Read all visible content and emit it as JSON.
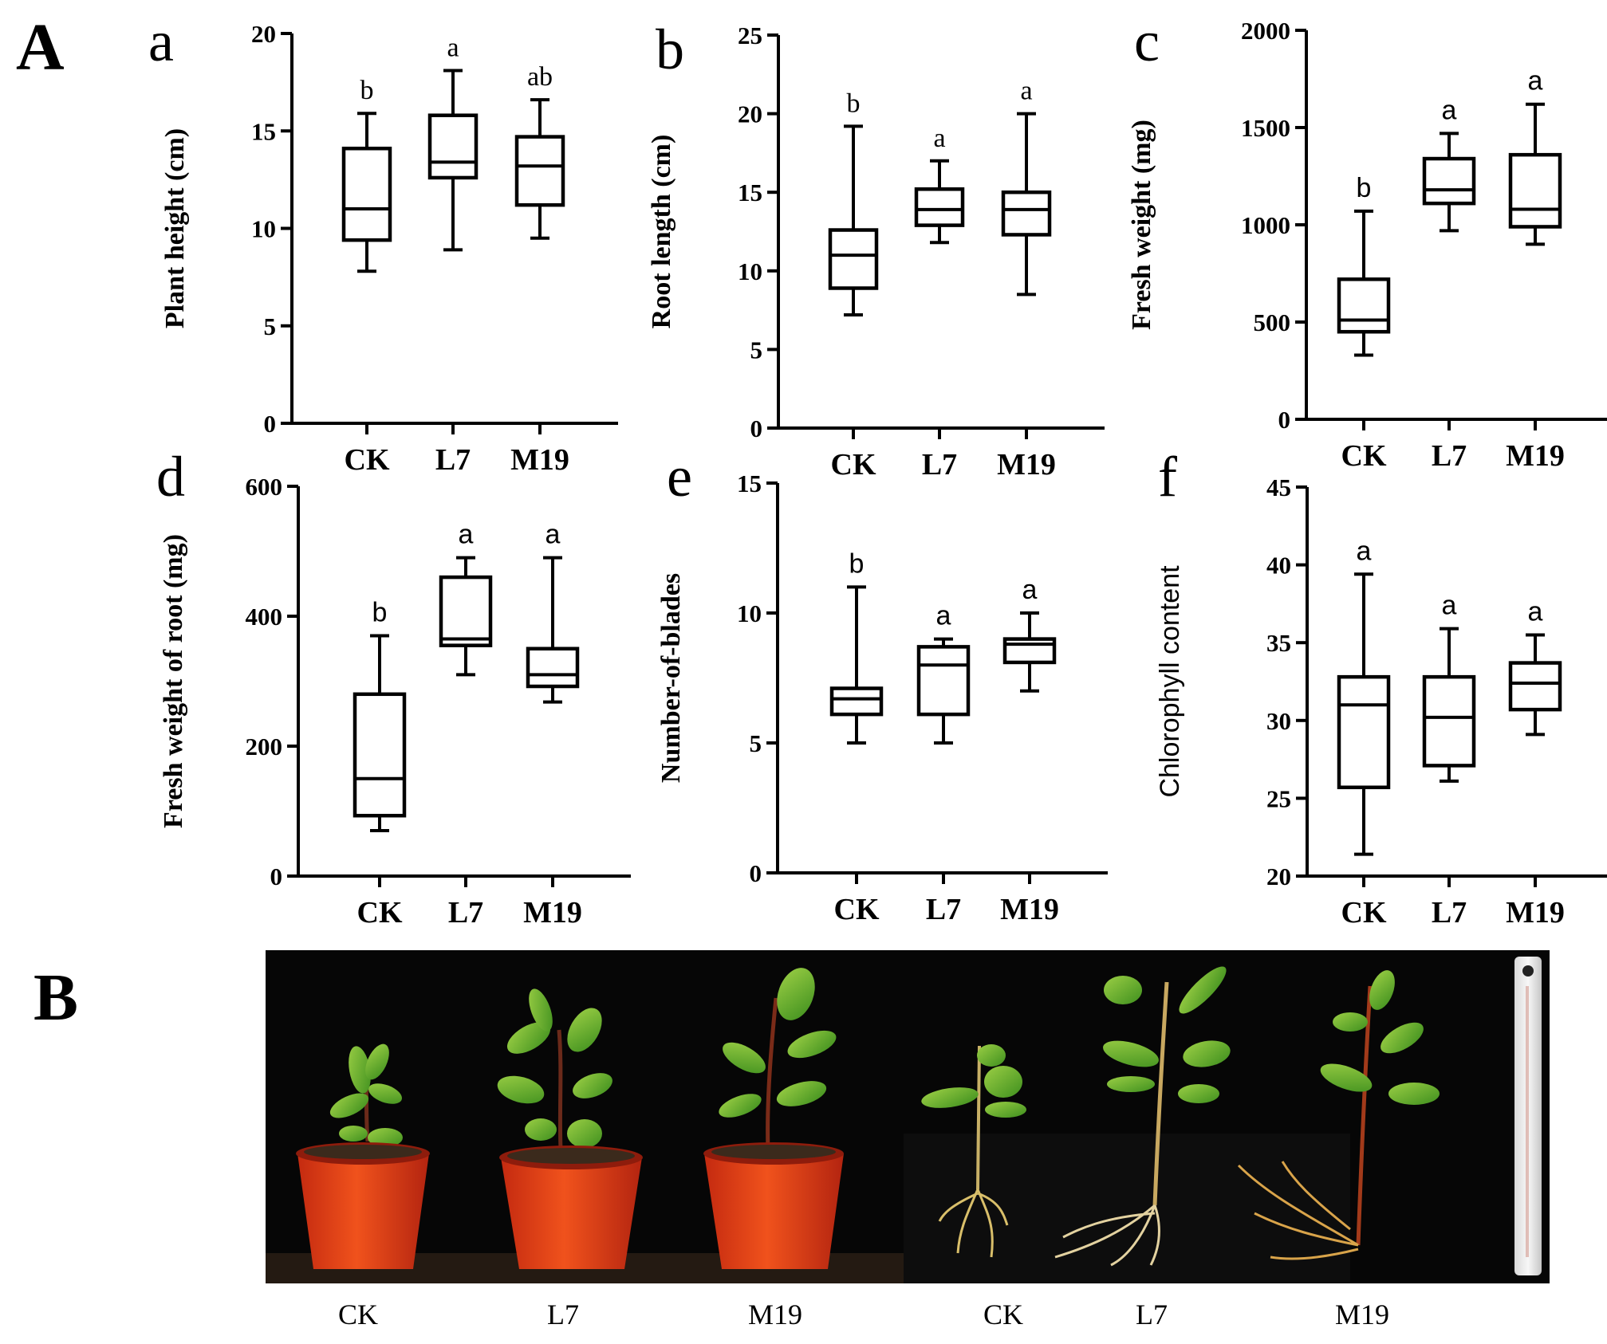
{
  "panel_labels": {
    "A": "A",
    "B": "B"
  },
  "chart_data": [
    {
      "type": "box",
      "letter": "a",
      "ylabel": "Plant height (cm)",
      "ylabel_style": "serif",
      "ylim": [
        0,
        20
      ],
      "yticks": [
        0,
        5,
        10,
        15,
        20
      ],
      "categories": [
        "CK",
        "L7",
        "M19"
      ],
      "boxes": [
        {
          "category": "CK",
          "min": 7.8,
          "q1": 9.4,
          "median": 11.0,
          "q3": 14.1,
          "max": 15.9,
          "sig": "b"
        },
        {
          "category": "L7",
          "min": 8.9,
          "q1": 12.6,
          "median": 13.4,
          "q3": 15.8,
          "max": 18.1,
          "sig": "a"
        },
        {
          "category": "M19",
          "min": 9.5,
          "q1": 11.2,
          "median": 13.2,
          "q3": 14.7,
          "max": 16.6,
          "sig": "ab"
        }
      ],
      "sig_style": "serif"
    },
    {
      "type": "box",
      "letter": "b",
      "ylabel": "Root length (cm)",
      "ylabel_style": "serif",
      "ylim": [
        0,
        25
      ],
      "yticks": [
        0,
        5,
        10,
        15,
        20,
        25
      ],
      "categories": [
        "CK",
        "L7",
        "M19"
      ],
      "boxes": [
        {
          "category": "CK",
          "min": 7.2,
          "q1": 8.9,
          "median": 11.0,
          "q3": 12.6,
          "max": 19.2,
          "sig": "b"
        },
        {
          "category": "L7",
          "min": 11.8,
          "q1": 12.9,
          "median": 13.9,
          "q3": 15.2,
          "max": 17.0,
          "sig": "a"
        },
        {
          "category": "M19",
          "min": 8.5,
          "q1": 12.3,
          "median": 13.9,
          "q3": 15.0,
          "max": 20.0,
          "sig": "a"
        }
      ],
      "sig_style": "serif"
    },
    {
      "type": "box",
      "letter": "c",
      "ylabel": "Fresh weight (mg)",
      "ylabel_style": "serif",
      "ylim": [
        0,
        2000
      ],
      "yticks": [
        0,
        500,
        1000,
        1500,
        2000
      ],
      "categories": [
        "CK",
        "L7",
        "M19"
      ],
      "boxes": [
        {
          "category": "CK",
          "min": 330,
          "q1": 450,
          "median": 510,
          "q3": 720,
          "max": 1070,
          "sig": "b"
        },
        {
          "category": "L7",
          "min": 970,
          "q1": 1110,
          "median": 1180,
          "q3": 1340,
          "max": 1470,
          "sig": "a"
        },
        {
          "category": "M19",
          "min": 900,
          "q1": 990,
          "median": 1080,
          "q3": 1360,
          "max": 1620,
          "sig": "a"
        }
      ],
      "sig_style": "sans"
    },
    {
      "type": "box",
      "letter": "d",
      "ylabel": "Fresh weight of root (mg)",
      "ylabel_style": "serif",
      "ylim": [
        0,
        600
      ],
      "yticks": [
        0,
        200,
        400,
        600
      ],
      "categories": [
        "CK",
        "L7",
        "M19"
      ],
      "boxes": [
        {
          "category": "CK",
          "min": 70,
          "q1": 93,
          "median": 150,
          "q3": 280,
          "max": 370,
          "sig": "b"
        },
        {
          "category": "L7",
          "min": 310,
          "q1": 355,
          "median": 365,
          "q3": 460,
          "max": 490,
          "sig": "a"
        },
        {
          "category": "M19",
          "min": 268,
          "q1": 292,
          "median": 310,
          "q3": 350,
          "max": 490,
          "sig": "a"
        }
      ],
      "sig_style": "sans"
    },
    {
      "type": "box",
      "letter": "e",
      "ylabel": "Number-of-blades",
      "ylabel_style": "serif",
      "ylim": [
        0,
        15
      ],
      "yticks": [
        0,
        5,
        10,
        15
      ],
      "categories": [
        "CK",
        "L7",
        "M19"
      ],
      "boxes": [
        {
          "category": "CK",
          "min": 5.0,
          "q1": 6.1,
          "median": 6.7,
          "q3": 7.1,
          "max": 11.0,
          "sig": "b"
        },
        {
          "category": "L7",
          "min": 5.0,
          "q1": 6.1,
          "median": 8.0,
          "q3": 8.7,
          "max": 9.0,
          "sig": "a"
        },
        {
          "category": "M19",
          "min": 7.0,
          "q1": 8.1,
          "median": 8.8,
          "q3": 9.0,
          "max": 10.0,
          "sig": "a"
        }
      ],
      "sig_style": "sans"
    },
    {
      "type": "box",
      "letter": "f",
      "ylabel": "Chlorophyll content",
      "ylabel_style": "sans",
      "ylim": [
        20,
        45
      ],
      "yticks": [
        20,
        25,
        30,
        35,
        40,
        45
      ],
      "categories": [
        "CK",
        "L7",
        "M19"
      ],
      "boxes": [
        {
          "category": "CK",
          "min": 21.4,
          "q1": 25.7,
          "median": 31.0,
          "q3": 32.8,
          "max": 39.4,
          "sig": "a"
        },
        {
          "category": "L7",
          "min": 26.1,
          "q1": 27.1,
          "median": 30.2,
          "q3": 32.8,
          "max": 35.9,
          "sig": "a"
        },
        {
          "category": "M19",
          "min": 29.1,
          "q1": 30.7,
          "median": 32.4,
          "q3": 33.7,
          "max": 35.5,
          "sig": "a"
        }
      ],
      "sig_style": "sans"
    }
  ],
  "photo_captions": [
    "CK",
    "L7",
    "M19",
    "CK",
    "L7",
    "M19"
  ]
}
